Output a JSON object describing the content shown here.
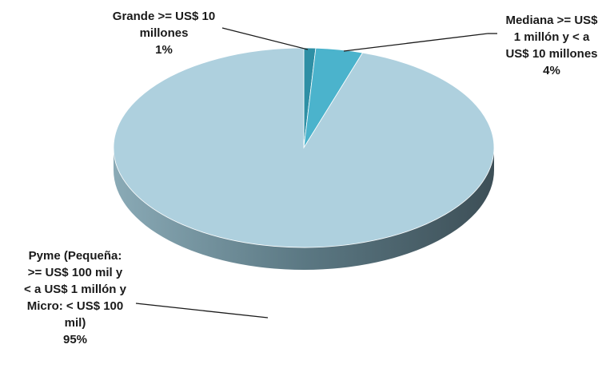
{
  "chart_data": {
    "type": "pie",
    "style": "3d",
    "slices": [
      {
        "label_lines": [
          "Grande >= US$ 10",
          "millones"
        ],
        "value": 1,
        "value_label": "1%",
        "color": "#2e8fa5"
      },
      {
        "label_lines": [
          "Mediana >= US$",
          "1 millón y < a",
          "US$ 10 millones"
        ],
        "value": 4,
        "value_label": "4%",
        "color": "#4bb3cc"
      },
      {
        "label_lines": [
          "Pyme (Pequeña:",
          ">= US$ 100 mil y",
          "< a US$ 1 millón y",
          "Micro: < US$ 100",
          "mil)"
        ],
        "value": 95,
        "value_label": "95%",
        "color": "#aed0de"
      }
    ]
  }
}
